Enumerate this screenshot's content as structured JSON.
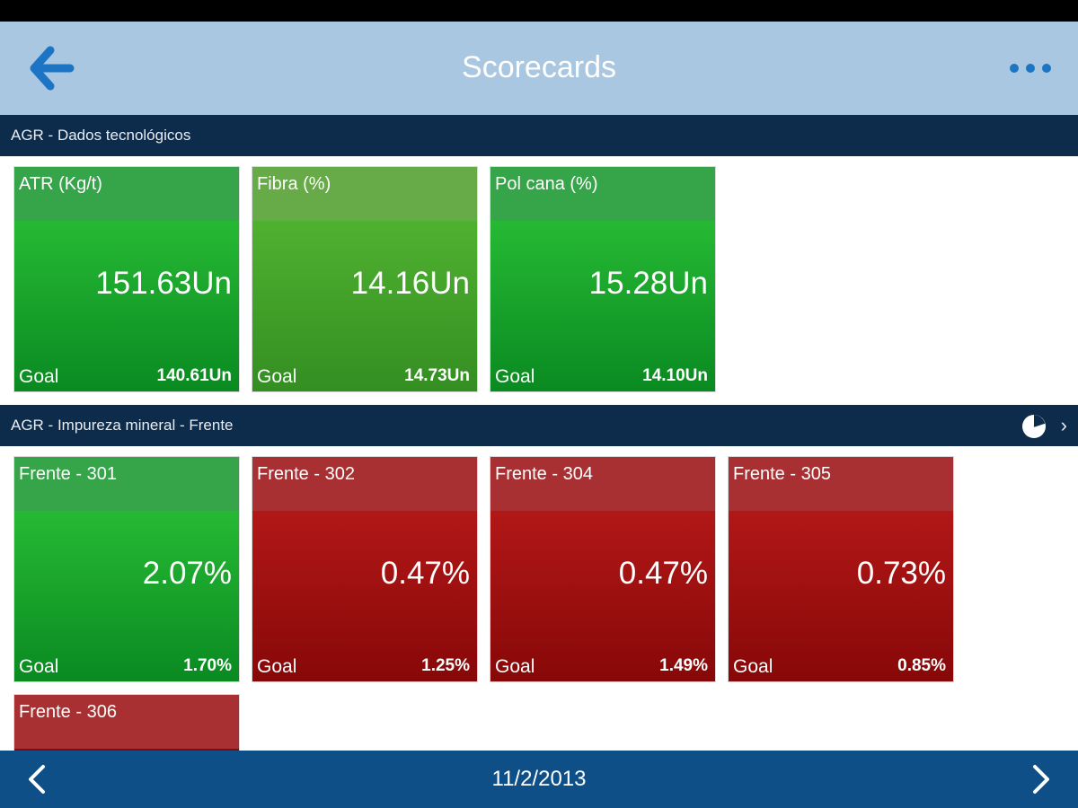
{
  "header": {
    "title": "Scorecards",
    "back_icon": "arrow-left-icon",
    "menu_icon": "more-dots-icon"
  },
  "sections": [
    {
      "title": "AGR - Dados tecnológicos",
      "tiles": [
        {
          "name": "ATR (Kg/t)",
          "value": "151.63Un",
          "goal_label": "Goal",
          "goal": "140.61Un",
          "status": "green"
        },
        {
          "name": "Fibra (%)",
          "value": "14.16Un",
          "goal_label": "Goal",
          "goal": "14.73Un",
          "status": "olive"
        },
        {
          "name": "Pol cana (%)",
          "value": "15.28Un",
          "goal_label": "Goal",
          "goal": "14.10Un",
          "status": "green"
        }
      ]
    },
    {
      "title": "AGR - Impureza mineral - Frente",
      "icons": [
        "pie-chart-icon",
        "chevron-right-icon"
      ],
      "tiles": [
        {
          "name": "Frente - 301",
          "value": "2.07%",
          "goal_label": "Goal",
          "goal": "1.70%",
          "status": "green"
        },
        {
          "name": "Frente - 302",
          "value": "0.47%",
          "goal_label": "Goal",
          "goal": "1.25%",
          "status": "red"
        },
        {
          "name": "Frente - 304",
          "value": "0.47%",
          "goal_label": "Goal",
          "goal": "1.49%",
          "status": "red"
        },
        {
          "name": "Frente - 305",
          "value": "0.73%",
          "goal_label": "Goal",
          "goal": "0.85%",
          "status": "red"
        },
        {
          "name": "Frente - 306",
          "status": "red"
        }
      ]
    }
  ],
  "footer": {
    "date": "11/2/2013",
    "prev_icon": "chevron-left-icon",
    "next_icon": "chevron-right-icon"
  },
  "colors": {
    "navbar": "#a9c7e0",
    "section": "#0d2b4b",
    "footer": "#0f4f88",
    "accent": "#1b74c4",
    "good": "#1fb033",
    "bad": "#b01414"
  }
}
